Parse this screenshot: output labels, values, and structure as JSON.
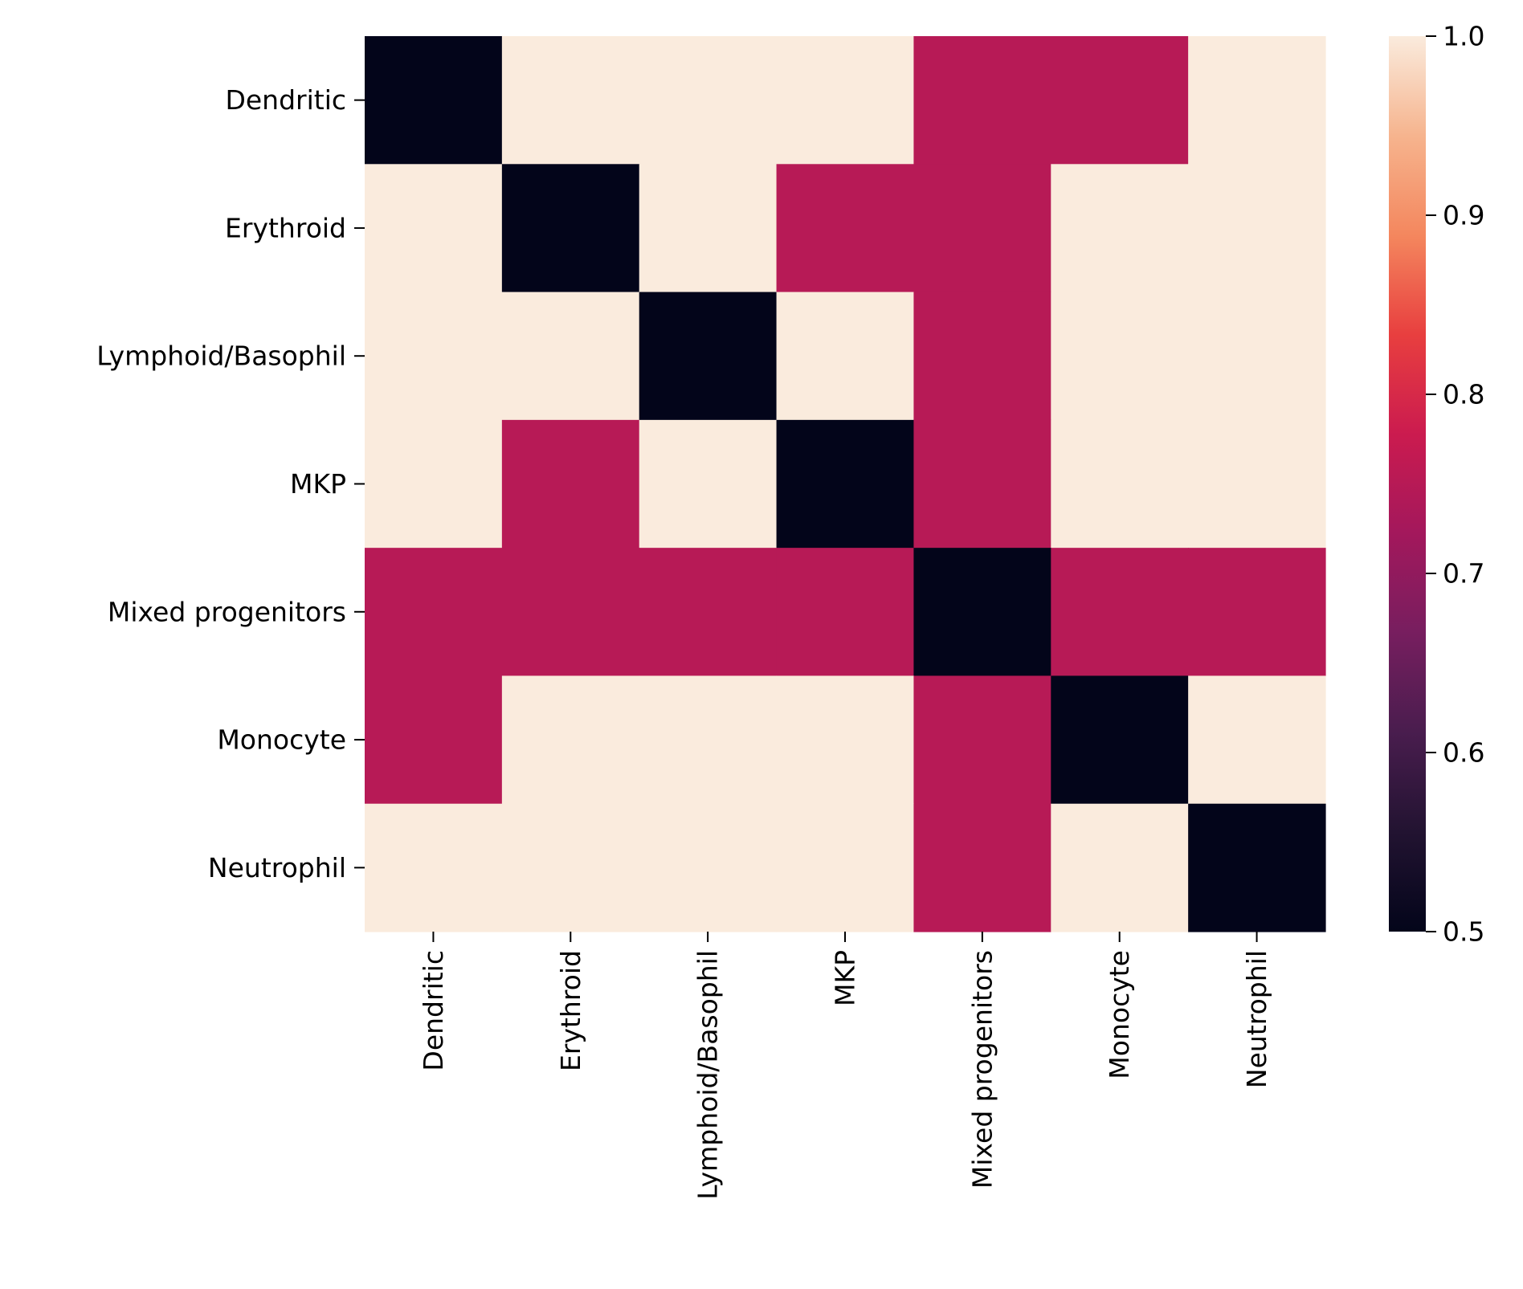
{
  "chart_data": {
    "type": "heatmap",
    "title": "",
    "xlabel": "",
    "ylabel": "",
    "x_categories": [
      "Dendritic",
      "Erythroid",
      "Lymphoid/Basophil",
      "MKP",
      "Mixed progenitors",
      "Monocyte",
      "Neutrophil"
    ],
    "y_categories": [
      "Dendritic",
      "Erythroid",
      "Lymphoid/Basophil",
      "MKP",
      "Mixed progenitors",
      "Monocyte",
      "Neutrophil"
    ],
    "values": [
      [
        0.5,
        1.0,
        1.0,
        1.0,
        0.75,
        0.75,
        1.0
      ],
      [
        1.0,
        0.5,
        1.0,
        0.75,
        0.75,
        1.0,
        1.0
      ],
      [
        1.0,
        1.0,
        0.5,
        1.0,
        0.75,
        1.0,
        1.0
      ],
      [
        1.0,
        0.75,
        1.0,
        0.5,
        0.75,
        1.0,
        1.0
      ],
      [
        0.75,
        0.75,
        0.75,
        0.75,
        0.5,
        0.75,
        0.75
      ],
      [
        0.75,
        1.0,
        1.0,
        1.0,
        0.75,
        0.5,
        1.0
      ],
      [
        1.0,
        1.0,
        1.0,
        1.0,
        0.75,
        1.0,
        0.5
      ]
    ],
    "colorbar": {
      "range": [
        0.5,
        1.0
      ],
      "ticks": [
        "0.5",
        "0.6",
        "0.7",
        "0.8",
        "0.9",
        "1.0"
      ],
      "colormap": "rocket",
      "colors": [
        "#03051a",
        "#221331",
        "#491d4e",
        "#771e5f",
        "#a3185c",
        "#cb1b4f",
        "#e83f3f",
        "#f4875e",
        "#f6b48e",
        "#faebdd"
      ]
    },
    "grid": false,
    "legend": "colorbar-right"
  }
}
